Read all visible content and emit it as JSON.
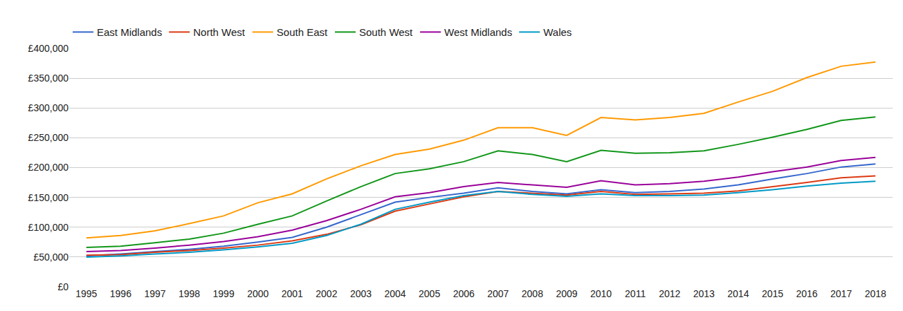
{
  "chart_data": {
    "type": "line",
    "categories": [
      "1995",
      "1996",
      "1997",
      "1998",
      "1999",
      "2000",
      "2001",
      "2002",
      "2003",
      "2004",
      "2005",
      "2006",
      "2007",
      "2008",
      "2009",
      "2010",
      "2011",
      "2012",
      "2013",
      "2014",
      "2015",
      "2016",
      "2017",
      "2018"
    ],
    "series": [
      {
        "name": "East Midlands",
        "color": "#3366cc",
        "values": [
          52000,
          55000,
          59000,
          63000,
          68000,
          75000,
          83000,
          100000,
          121000,
          142000,
          150000,
          157000,
          166000,
          160000,
          156000,
          163000,
          158000,
          160000,
          164000,
          171000,
          181000,
          190000,
          201000,
          206000
        ]
      },
      {
        "name": "North West",
        "color": "#dc3912",
        "values": [
          53000,
          54000,
          58000,
          61000,
          65000,
          70000,
          77000,
          88000,
          104000,
          127000,
          139000,
          151000,
          160000,
          157000,
          154000,
          160000,
          155000,
          156000,
          157000,
          161000,
          168000,
          175000,
          183000,
          186000
        ]
      },
      {
        "name": "South East",
        "color": "#ff9900",
        "values": [
          82000,
          86000,
          94000,
          106000,
          119000,
          141000,
          156000,
          181000,
          203000,
          222000,
          231000,
          246000,
          267000,
          267000,
          254000,
          284000,
          280000,
          284000,
          291000,
          310000,
          328000,
          351000,
          370000,
          377000
        ]
      },
      {
        "name": "South West",
        "color": "#109618",
        "values": [
          66000,
          68000,
          74000,
          80000,
          90000,
          105000,
          119000,
          144000,
          168000,
          190000,
          198000,
          210000,
          228000,
          222000,
          210000,
          229000,
          224000,
          225000,
          228000,
          239000,
          251000,
          264000,
          279000,
          285000
        ]
      },
      {
        "name": "West Midlands",
        "color": "#990099",
        "values": [
          59000,
          61000,
          65000,
          70000,
          76000,
          84000,
          95000,
          111000,
          130000,
          151000,
          158000,
          168000,
          175000,
          171000,
          167000,
          178000,
          171000,
          173000,
          177000,
          184000,
          193000,
          201000,
          212000,
          217000
        ]
      },
      {
        "name": "Wales",
        "color": "#0099c6",
        "values": [
          50000,
          52000,
          55000,
          58000,
          62000,
          67000,
          73000,
          86000,
          105000,
          130000,
          142000,
          153000,
          160000,
          155000,
          152000,
          156000,
          153000,
          153000,
          154000,
          158000,
          163000,
          169000,
          174000,
          177000
        ]
      }
    ],
    "ylim": [
      0,
      400000
    ],
    "yticks": [
      {
        "value": 0,
        "label": "£0"
      },
      {
        "value": 50000,
        "label": "£50,000"
      },
      {
        "value": 100000,
        "label": "£100,000"
      },
      {
        "value": 150000,
        "label": "£150,000"
      },
      {
        "value": 200000,
        "label": "£200,000"
      },
      {
        "value": 250000,
        "label": "£250,000"
      },
      {
        "value": 300000,
        "label": "£300,000"
      },
      {
        "value": 350000,
        "label": "£350,000"
      },
      {
        "value": 400000,
        "label": "£400,000"
      }
    ],
    "grid": true,
    "legend": "top-left"
  }
}
